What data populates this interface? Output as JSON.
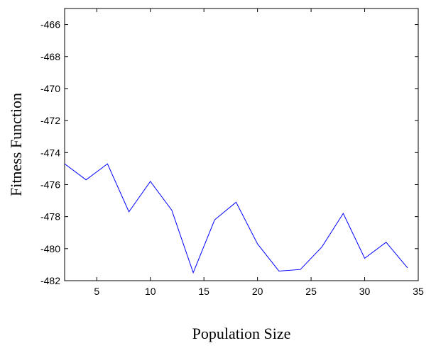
{
  "chart_data": {
    "type": "line",
    "title": "",
    "xlabel": "Population Size",
    "ylabel": "Fitness Function",
    "xlim": [
      2,
      35
    ],
    "ylim": [
      -482,
      -465
    ],
    "xticks": [
      5,
      10,
      15,
      20,
      25,
      30,
      35
    ],
    "yticks": [
      -482,
      -480,
      -478,
      -476,
      -474,
      -472,
      -470,
      -468,
      -466
    ],
    "grid": false,
    "legend": "none",
    "series": [
      {
        "color": "#0000ff",
        "x": [
          2,
          4,
          6,
          8,
          10,
          12,
          14,
          16,
          18,
          20,
          22,
          24,
          26,
          28,
          30,
          32,
          34
        ],
        "y": [
          -474.7,
          -475.7,
          -474.7,
          -477.7,
          -475.8,
          -477.6,
          -481.5,
          -478.2,
          -477.1,
          -479.7,
          -481.4,
          -481.3,
          -479.9,
          -477.8,
          -480.6,
          -479.6,
          -481.2
        ]
      }
    ]
  }
}
